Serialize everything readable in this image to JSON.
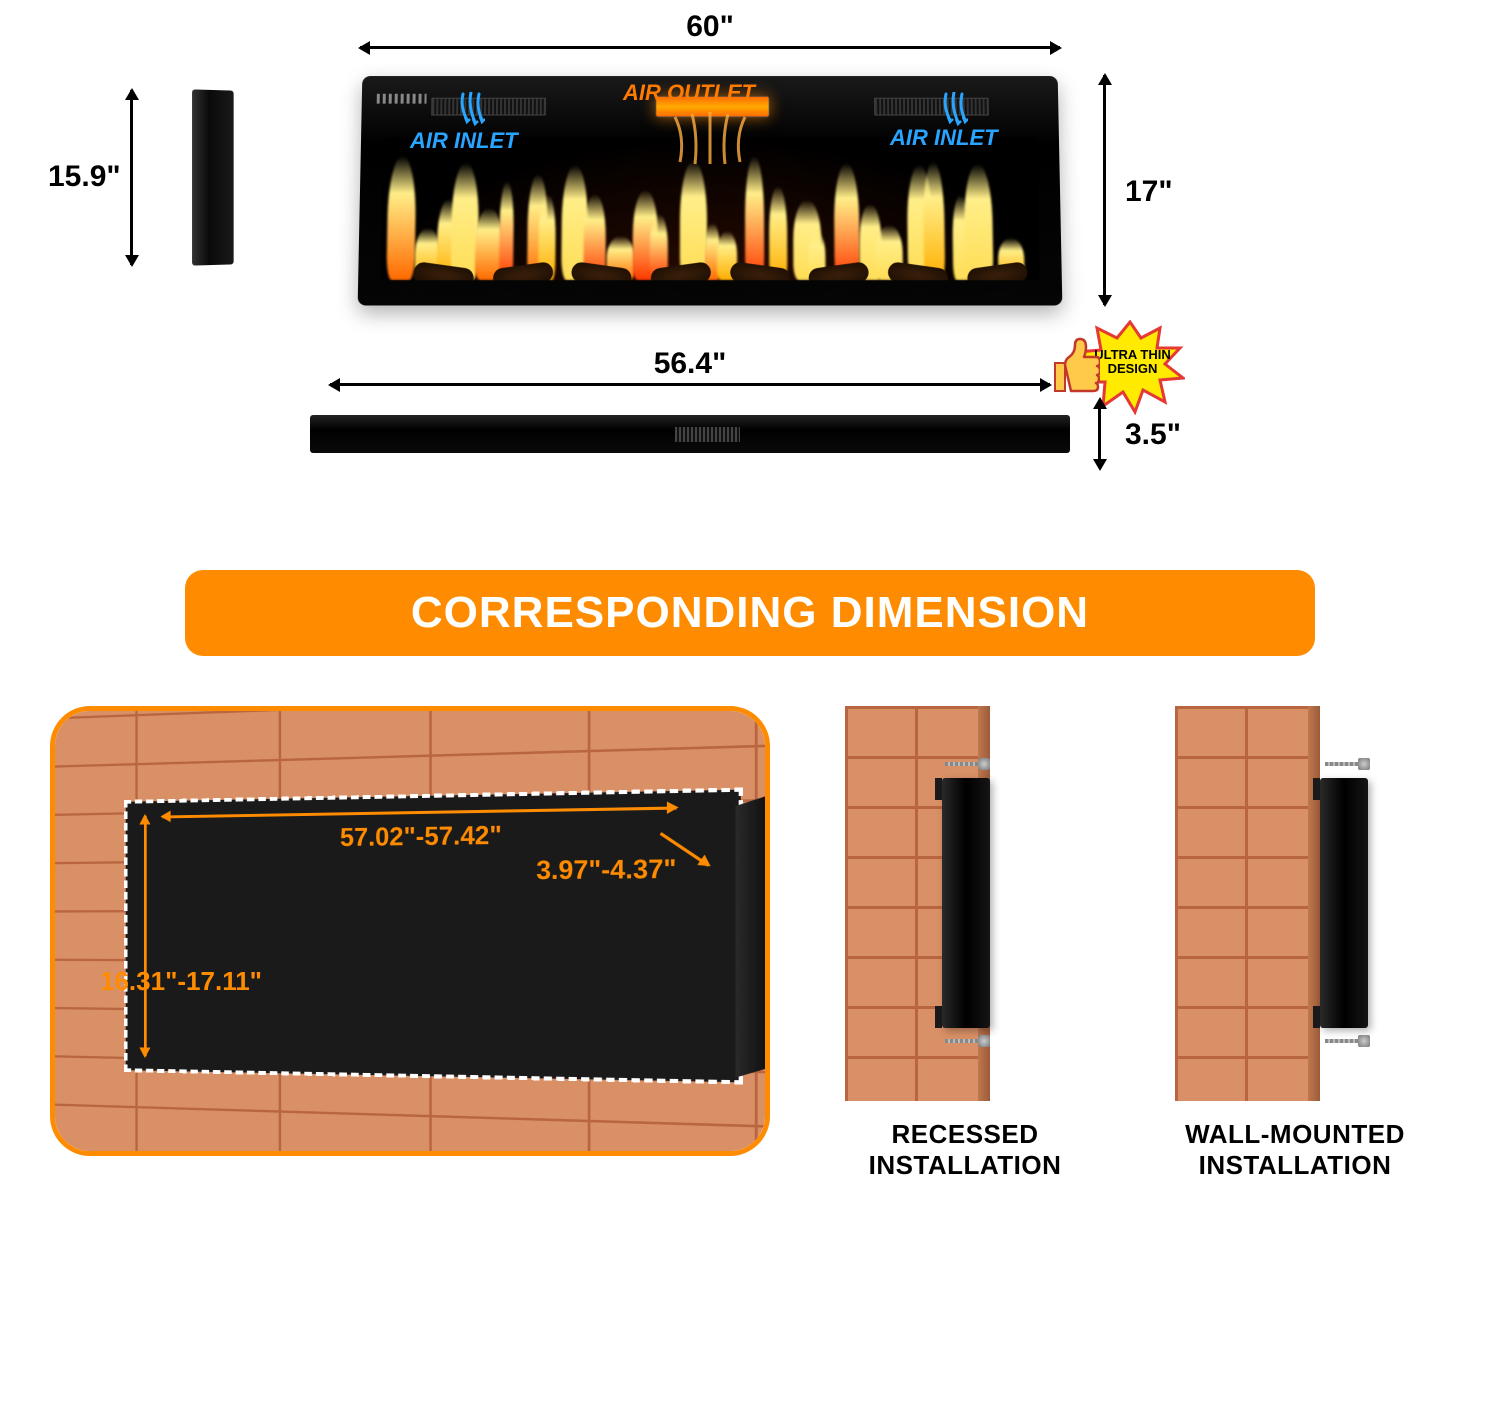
{
  "dimensions": {
    "width_overall": "60\"",
    "height_overall": "17\"",
    "side_height": "15.9\"",
    "front_width": "56.4\"",
    "thickness": "3.5\""
  },
  "air_labels": {
    "inlet_left": "AIR INLET",
    "outlet": "AIR OUTLET",
    "inlet_right": "AIR INLET"
  },
  "badge": {
    "line1": "ULTRA THIN",
    "line2": "DESIGN"
  },
  "banner": "CORRESPONDING DIMENSION",
  "cutout": {
    "width": "57.02\"-57.42\"",
    "height": "16.31\"-17.11\"",
    "depth": "3.97\"-4.37\""
  },
  "install": {
    "recessed_l1": "RECESSED",
    "recessed_l2": "INSTALLATION",
    "wall_l1": "WALL-MOUNTED",
    "wall_l2": "INSTALLATION"
  },
  "colors": {
    "accent": "#ff8c00",
    "air_blue": "#2aa5ff",
    "air_orange": "#ff7a00",
    "brick": "#d99066",
    "mortar": "#b86540"
  },
  "infographic_type": "product-dimension-diagram"
}
